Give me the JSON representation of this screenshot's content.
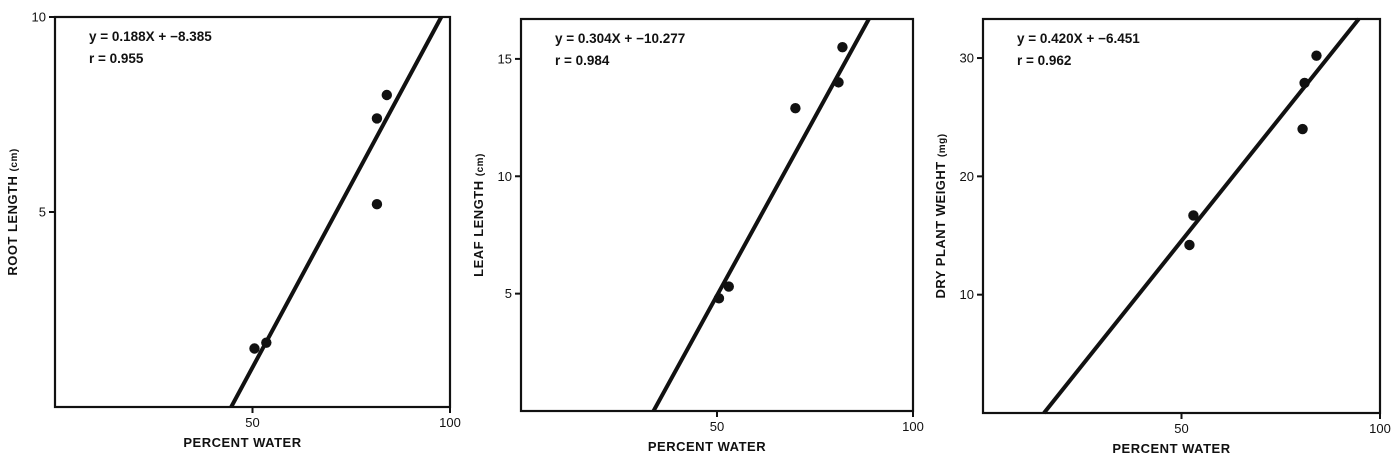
{
  "chart_data": [
    {
      "type": "scatter",
      "xlabel": "PERCENT WATER",
      "ylabel": "ROOT LENGTH",
      "ylabel_unit": "(cm)",
      "xlim": [
        0,
        100
      ],
      "ylim": [
        0,
        10
      ],
      "x_ticks": [
        50,
        100
      ],
      "y_ticks": [
        5,
        10
      ],
      "equation": "y = 0.188X  +  −8.385",
      "r_text": "r = 0.955",
      "fit": {
        "slope": 0.188,
        "intercept": -8.385
      },
      "series": [
        {
          "x": [
            50.5,
            53.5,
            81.5,
            81.5,
            84
          ],
          "y": [
            1.5,
            1.65,
            7.4,
            5.2,
            8.0
          ]
        }
      ]
    },
    {
      "type": "scatter",
      "xlabel": "PERCENT WATER",
      "ylabel": "LEAF LENGTH",
      "ylabel_unit": "(cm)",
      "xlim": [
        0,
        100
      ],
      "ylim": [
        0,
        16.7
      ],
      "x_ticks": [
        50,
        100
      ],
      "y_ticks": [
        5,
        10,
        15
      ],
      "equation": "y = 0.304X  +  −10.277",
      "r_text": "r = 0.984",
      "fit": {
        "slope": 0.304,
        "intercept": -10.277
      },
      "series": [
        {
          "x": [
            50.5,
            53,
            70,
            81,
            82
          ],
          "y": [
            4.8,
            5.3,
            12.9,
            14.0,
            15.5
          ]
        }
      ]
    },
    {
      "type": "scatter",
      "xlabel": "PERCENT WATER",
      "ylabel": "DRY PLANT WEIGHT",
      "ylabel_unit": "(mg)",
      "xlim": [
        0,
        100
      ],
      "ylim": [
        0,
        33.3
      ],
      "x_ticks": [
        50,
        100
      ],
      "y_ticks": [
        10,
        20,
        30
      ],
      "equation": "y = 0.420X  +  −6.451",
      "r_text": "r = 0.962",
      "fit": {
        "slope": 0.42,
        "intercept": -6.451
      },
      "series": [
        {
          "x": [
            52,
            53,
            80.5,
            81,
            84
          ],
          "y": [
            14.2,
            16.7,
            24.0,
            27.9,
            30.2
          ]
        }
      ]
    }
  ]
}
